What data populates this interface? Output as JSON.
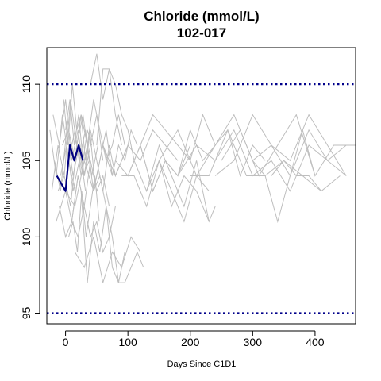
{
  "chart_data": {
    "type": "line",
    "title": "Chloride (mmol/L)",
    "subtitle": "102-017",
    "xlabel": "Days Since C1D1",
    "ylabel": "Chloride (mmol/L)",
    "xlim": [
      -30,
      465
    ],
    "ylim": [
      94.3,
      112.4
    ],
    "x_ticks": [
      0,
      100,
      200,
      300,
      400
    ],
    "y_ticks": [
      95,
      100,
      105,
      110
    ],
    "grid": false,
    "legend": "none",
    "reference_lines": [
      {
        "y": 110,
        "color": "#00008b",
        "style": "dotted"
      },
      {
        "y": 95,
        "color": "#00008b",
        "style": "dotted"
      }
    ],
    "colors": {
      "background_series": "#bebebe",
      "highlight_series": "#000080",
      "reference": "#00008b"
    },
    "highlight_series": {
      "x": [
        -14,
        0,
        7,
        14,
        21,
        28
      ],
      "y": [
        104,
        103,
        106,
        105,
        106,
        105
      ]
    },
    "background_series": [
      {
        "x": [
          -20,
          -10,
          0,
          10,
          20,
          30,
          40,
          50,
          60
        ],
        "y": [
          108,
          106,
          109,
          105,
          107,
          104,
          106,
          108,
          105
        ]
      },
      {
        "x": [
          -15,
          0,
          15,
          30,
          45,
          60,
          75
        ],
        "y": [
          101,
          103,
          102,
          105,
          103,
          106,
          104
        ]
      },
      {
        "x": [
          -10,
          0,
          10,
          20,
          30
        ],
        "y": [
          102,
          100,
          101,
          104,
          102
        ]
      },
      {
        "x": [
          -5,
          5,
          15,
          25,
          35,
          45,
          55,
          65,
          75,
          85,
          95
        ],
        "y": [
          106,
          107,
          105,
          108,
          106,
          109,
          107,
          105,
          106,
          108,
          106
        ]
      },
      {
        "x": [
          -8,
          2,
          12,
          22,
          32,
          42,
          52
        ],
        "y": [
          104,
          106,
          103,
          105,
          107,
          104,
          106
        ]
      },
      {
        "x": [
          0,
          7,
          14,
          21,
          28,
          35,
          42
        ],
        "y": [
          107,
          109,
          106,
          108,
          105,
          107,
          106
        ]
      },
      {
        "x": [
          -12,
          -2,
          8,
          18,
          28,
          38
        ],
        "y": [
          103,
          104,
          102,
          106,
          104,
          105
        ]
      },
      {
        "x": [
          -3,
          4,
          11,
          18,
          25,
          32,
          39,
          46
        ],
        "y": [
          109,
          106,
          110,
          107,
          108,
          105,
          107,
          104
        ]
      },
      {
        "x": [
          5,
          15,
          25,
          35,
          45,
          55,
          65,
          75,
          85,
          95,
          105,
          115
        ],
        "y": [
          105,
          107,
          104,
          106,
          103,
          105,
          107,
          104,
          106,
          105,
          107,
          106
        ]
      },
      {
        "x": [
          -18,
          -8,
          2,
          12,
          22,
          32
        ],
        "y": [
          105,
          103,
          107,
          104,
          106,
          103
        ]
      },
      {
        "x": [
          10,
          20,
          30,
          40,
          50,
          60,
          70,
          80
        ],
        "y": [
          101,
          100,
          102,
          100,
          101,
          99,
          100,
          102
        ]
      },
      {
        "x": [
          15,
          30,
          45,
          60,
          75,
          90,
          105,
          120
        ],
        "y": [
          99,
          98,
          100,
          97,
          99,
          98,
          100,
          99
        ]
      },
      {
        "x": [
          25,
          35,
          45,
          55,
          65,
          75,
          85,
          95
        ],
        "y": [
          103,
          97,
          101,
          99,
          102,
          100,
          97,
          99
        ]
      },
      {
        "x": [
          45,
          55,
          65,
          75,
          85,
          95,
          105,
          115,
          125
        ],
        "y": [
          103,
          104,
          102,
          98,
          97,
          97,
          98,
          99,
          98
        ]
      },
      {
        "x": [
          40,
          50,
          60,
          70,
          80,
          90
        ],
        "y": [
          110,
          112,
          109,
          111,
          108,
          106
        ]
      },
      {
        "x": [
          50,
          60,
          70,
          80,
          90,
          100,
          110
        ],
        "y": [
          106,
          111,
          111,
          110,
          108,
          107,
          105
        ]
      },
      {
        "x": [
          0,
          10,
          20,
          30,
          40,
          50,
          60,
          70
        ],
        "y": [
          103,
          101,
          104,
          102,
          105,
          103,
          104,
          102
        ]
      },
      {
        "x": [
          20,
          30,
          40,
          50,
          60,
          70,
          80,
          90,
          100
        ],
        "y": [
          106,
          104,
          107,
          105,
          103,
          106,
          104,
          105,
          106
        ]
      },
      {
        "x": [
          60,
          80,
          100,
          120,
          140,
          160,
          180
        ],
        "y": [
          106,
          104,
          106,
          105,
          107,
          106,
          105
        ]
      },
      {
        "x": [
          80,
          100,
          120,
          140,
          160,
          180,
          200
        ],
        "y": [
          105,
          104,
          106,
          103,
          105,
          104,
          106
        ]
      },
      {
        "x": [
          100,
          120,
          140,
          160,
          180,
          200,
          220,
          240
        ],
        "y": [
          104,
          106,
          103,
          105,
          104,
          107,
          105,
          106
        ]
      },
      {
        "x": [
          90,
          110,
          130,
          150,
          170,
          190,
          210,
          230
        ],
        "y": [
          104,
          104,
          102,
          105,
          103,
          101,
          104,
          103
        ]
      },
      {
        "x": [
          110,
          130,
          150,
          170,
          190,
          210,
          230
        ],
        "y": [
          105,
          103,
          106,
          104,
          102,
          105,
          101
        ]
      },
      {
        "x": [
          130,
          150,
          170,
          190,
          210,
          230,
          240
        ],
        "y": [
          103,
          105,
          102,
          104,
          103,
          101,
          102
        ]
      },
      {
        "x": [
          120,
          140,
          160,
          180,
          200,
          220,
          240,
          260,
          280,
          300,
          320
        ],
        "y": [
          106,
          108,
          107,
          106,
          105,
          108,
          106,
          107,
          104,
          106,
          105
        ]
      },
      {
        "x": [
          150,
          180,
          210,
          240,
          270,
          300,
          330,
          360,
          390,
          420,
          450,
          465
        ],
        "y": [
          105,
          107,
          104,
          106,
          108,
          105,
          106,
          104,
          107,
          105,
          106,
          106
        ]
      },
      {
        "x": [
          180,
          210,
          240,
          270,
          300,
          330,
          360,
          390,
          420,
          450
        ],
        "y": [
          104,
          106,
          105,
          107,
          104,
          105,
          103,
          106,
          105,
          104
        ]
      },
      {
        "x": [
          200,
          230,
          260,
          290,
          320,
          350,
          380,
          410,
          440
        ],
        "y": [
          104,
          104,
          107,
          104,
          104,
          105,
          104,
          103,
          104
        ]
      },
      {
        "x": [
          240,
          270,
          300,
          330,
          360,
          390,
          420,
          450
        ],
        "y": [
          104,
          105,
          108,
          106,
          105,
          108,
          106,
          104
        ]
      },
      {
        "x": [
          250,
          280,
          310,
          340,
          370,
          400,
          430,
          460
        ],
        "y": [
          105,
          107,
          104,
          106,
          108,
          104,
          106,
          106
        ]
      },
      {
        "x": [
          300,
          320,
          340,
          360,
          380,
          400
        ],
        "y": [
          105,
          104,
          101,
          104,
          107,
          104
        ]
      },
      {
        "x": [
          330,
          350,
          370,
          390,
          410
        ],
        "y": [
          104,
          105,
          104,
          104,
          103
        ]
      },
      {
        "x": [
          -25,
          -15,
          -5,
          5,
          15
        ],
        "y": [
          107,
          104,
          108,
          105,
          103
        ]
      },
      {
        "x": [
          -22,
          -12,
          -2,
          8,
          18,
          28,
          38
        ],
        "y": [
          103,
          106,
          104,
          109,
          106,
          108,
          105
        ]
      },
      {
        "x": [
          5,
          12,
          19,
          26,
          33,
          40,
          47,
          54
        ],
        "y": [
          100,
          101,
          99,
          103,
          100,
          102,
          104,
          101
        ]
      }
    ]
  }
}
